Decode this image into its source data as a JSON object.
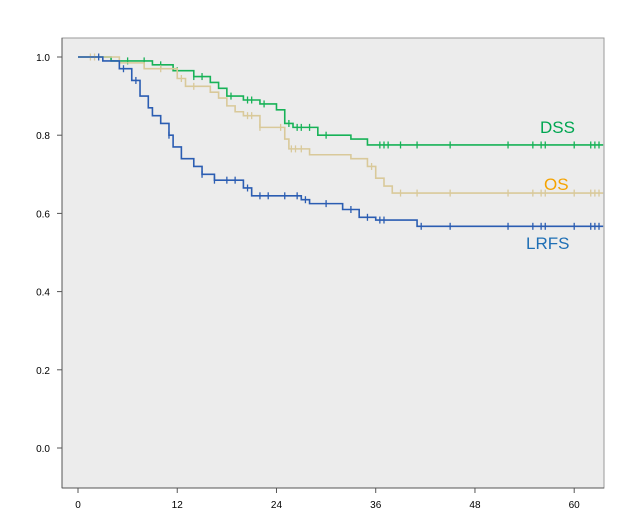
{
  "chart_data": {
    "type": "line",
    "subtype": "kaplan-meier step",
    "title": "",
    "xlabel": "",
    "ylabel": "",
    "xlim": [
      0,
      63.5
    ],
    "ylim": [
      0,
      1.0
    ],
    "x_ticks": [
      "0",
      "12",
      "24",
      "36",
      "48",
      "60"
    ],
    "x_tick_values": [
      0,
      12,
      24,
      36,
      48,
      60
    ],
    "y_ticks": [
      "0.0",
      "0.2",
      "0.4",
      "0.6",
      "0.8",
      "1.0"
    ],
    "y_tick_values": [
      0,
      0.2,
      0.4,
      0.6,
      0.8,
      1.0
    ],
    "grid": false,
    "series": [
      {
        "name": "DSS",
        "color": "#17b257",
        "label_color": "#00a651",
        "steps": [
          [
            0,
            1
          ],
          [
            4,
            0.99
          ],
          [
            9,
            0.98
          ],
          [
            11.5,
            0.965
          ],
          [
            14,
            0.95
          ],
          [
            16,
            0.935
          ],
          [
            17,
            0.92
          ],
          [
            18,
            0.9
          ],
          [
            20,
            0.89
          ],
          [
            22,
            0.88
          ],
          [
            24,
            0.865
          ],
          [
            25,
            0.83
          ],
          [
            26,
            0.82
          ],
          [
            29,
            0.8
          ],
          [
            33,
            0.79
          ],
          [
            35,
            0.775
          ]
        ],
        "censored": [
          6,
          8,
          10,
          12,
          14,
          15,
          18.5,
          20.5,
          21,
          22.5,
          25.5,
          26.5,
          27,
          28,
          30,
          36.5,
          37,
          37.5,
          39,
          41,
          45,
          52,
          55,
          56,
          56.5,
          60,
          62,
          62.5,
          63
        ]
      },
      {
        "name": "OS",
        "color": "#d9c99a",
        "label_color": "#f5a300",
        "steps": [
          [
            0,
            1
          ],
          [
            5,
            0.985
          ],
          [
            8,
            0.97
          ],
          [
            12,
            0.945
          ],
          [
            13,
            0.925
          ],
          [
            16,
            0.91
          ],
          [
            17,
            0.895
          ],
          [
            18,
            0.875
          ],
          [
            19,
            0.86
          ],
          [
            20,
            0.85
          ],
          [
            22,
            0.82
          ],
          [
            25,
            0.79
          ],
          [
            25.5,
            0.765
          ],
          [
            28,
            0.75
          ],
          [
            33,
            0.74
          ],
          [
            35,
            0.72
          ],
          [
            36,
            0.69
          ],
          [
            37,
            0.67
          ],
          [
            38,
            0.652
          ]
        ],
        "censored": [
          1.5,
          2,
          10,
          12.5,
          14,
          20.5,
          21,
          22,
          24.5,
          25.8,
          26.3,
          27,
          35.5,
          39,
          41,
          45,
          52,
          55,
          56,
          56.5,
          60,
          62,
          62.5,
          63
        ]
      },
      {
        "name": "LRFS",
        "color": "#2b5db2",
        "label_color": "#1f6fb5",
        "steps": [
          [
            0,
            1
          ],
          [
            3,
            0.99
          ],
          [
            5,
            0.97
          ],
          [
            6.5,
            0.94
          ],
          [
            7.5,
            0.9
          ],
          [
            8.5,
            0.87
          ],
          [
            9,
            0.85
          ],
          [
            10,
            0.83
          ],
          [
            11,
            0.8
          ],
          [
            11.5,
            0.77
          ],
          [
            12.5,
            0.74
          ],
          [
            14,
            0.72
          ],
          [
            15,
            0.7
          ],
          [
            16.5,
            0.685
          ],
          [
            20,
            0.665
          ],
          [
            21,
            0.645
          ],
          [
            27,
            0.635
          ],
          [
            28,
            0.625
          ],
          [
            32,
            0.61
          ],
          [
            34,
            0.59
          ],
          [
            36,
            0.583
          ],
          [
            41,
            0.567
          ]
        ],
        "censored": [
          2.5,
          5.5,
          7,
          11,
          15,
          16.5,
          18,
          19,
          20.5,
          22,
          23,
          25,
          26.5,
          27.5,
          30,
          33,
          35,
          36.5,
          37,
          41.5,
          45,
          52,
          55,
          56,
          56.5,
          60,
          62,
          62.5,
          63
        ]
      }
    ]
  }
}
